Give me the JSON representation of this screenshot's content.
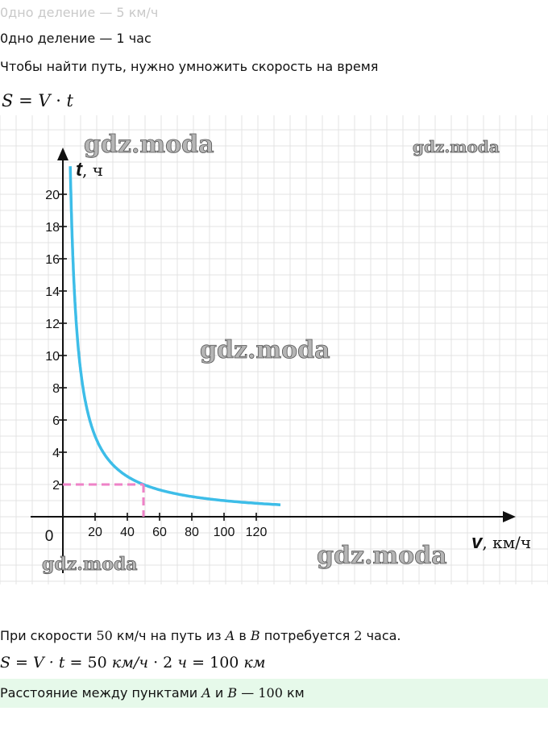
{
  "intro": {
    "line1": "0дно деление — 5 км/ч",
    "line2": "0дно деление — 1 час",
    "line3": "Чтобы найти путь, нужно умножить скорость на время",
    "formula": {
      "s": "S",
      "eq": " = ",
      "v": "V",
      "dot": " · ",
      "t": "t"
    }
  },
  "watermark": "gdz.moda",
  "chart_data": {
    "type": "line",
    "xlabel": {
      "var": "v",
      "unit": ", км/ч"
    },
    "ylabel": {
      "var": "t",
      "unit": ", ч"
    },
    "origin_label": "0",
    "xlim": [
      0,
      140
    ],
    "ylim": [
      0,
      22
    ],
    "x_ticks": [
      20,
      40,
      60,
      80,
      100,
      120
    ],
    "y_ticks": [
      2,
      4,
      6,
      8,
      10,
      12,
      14,
      16,
      18,
      20
    ],
    "series": [
      {
        "function": "t = 100 / v",
        "x_range": [
          4.6,
          135
        ]
      }
    ],
    "highlight": {
      "x": 50,
      "y": 2
    },
    "colors": {
      "curve": "#3dbde8",
      "highlight": "#ee82c7",
      "grid": "#e3e3e3"
    }
  },
  "solution": {
    "line1": {
      "a": "При скорости ",
      "n1": "50",
      "b": " км/ч на путь из ",
      "A": "A",
      "c": " в ",
      "B": "B",
      "d": " потребуется ",
      "n2": "2",
      "e": " часа."
    },
    "formula": {
      "lhs": "S = V · t = ",
      "v": "50",
      "vu": " км/ч",
      "m": " · ",
      "t": "2",
      "tu": " ч",
      "eq": " = ",
      "s": "100",
      "su": " км"
    }
  },
  "answer": {
    "a": "Расстояние между пунктами ",
    "A": "A",
    "b": " и ",
    "B": "B",
    "c": " — ",
    "n": "100",
    "d": " км"
  }
}
